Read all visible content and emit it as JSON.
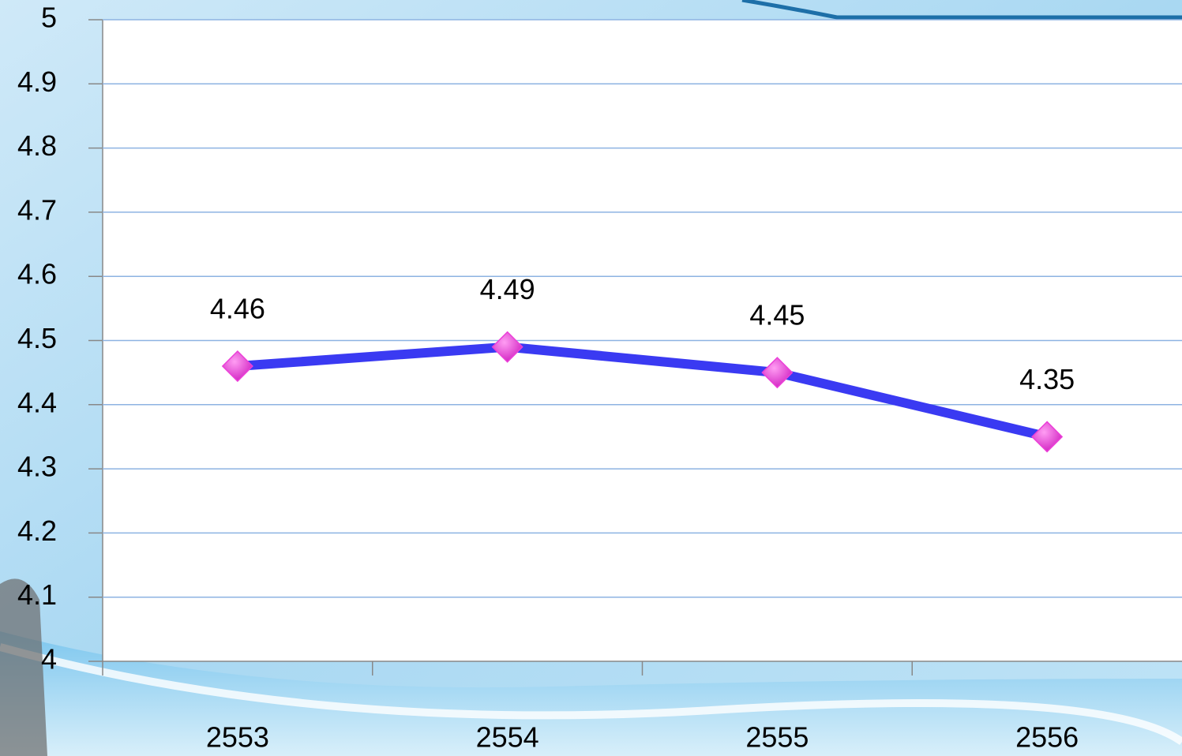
{
  "chart_data": {
    "type": "line",
    "categories": [
      "2553",
      "2554",
      "2555",
      "2556"
    ],
    "series": [
      {
        "color": "#3a3af2",
        "marker_color": "#ec3fd8",
        "values": [
          4.46,
          4.49,
          4.45,
          4.35
        ]
      }
    ],
    "ylim": [
      4,
      5
    ],
    "yticks": [
      4,
      4.1,
      4.2,
      4.3,
      4.4,
      4.5,
      4.6,
      4.7,
      4.8,
      4.9,
      5
    ],
    "grid": true
  }
}
